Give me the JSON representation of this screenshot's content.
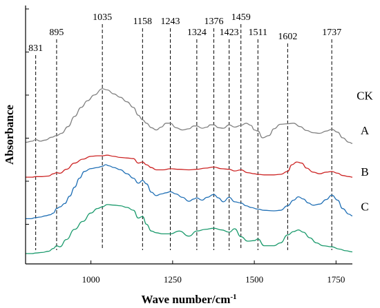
{
  "chart_data": {
    "type": "line",
    "xlabel": "Wave number/cm",
    "xlabel_sup": "-1",
    "ylabel": "Absorbance",
    "xlim": [
      800,
      1800
    ],
    "xticks": [
      1000,
      1250,
      1500,
      1750
    ],
    "yticks_count": 6,
    "y_axis_values_shown": false,
    "peak_markers": [
      831,
      895,
      1035,
      1158,
      1243,
      1324,
      1376,
      1423,
      1459,
      1511,
      1602,
      1737
    ],
    "series": [
      {
        "name": "CK",
        "color": "#808080",
        "baseline": 0.83,
        "x": [
          800,
          820,
          831,
          845,
          860,
          880,
          895,
          910,
          930,
          950,
          970,
          990,
          1010,
          1035,
          1050,
          1070,
          1090,
          1110,
          1130,
          1145,
          1158,
          1170,
          1185,
          1200,
          1215,
          1230,
          1243,
          1260,
          1280,
          1300,
          1315,
          1324,
          1340,
          1355,
          1365,
          1376,
          1390,
          1405,
          1423,
          1440,
          1459,
          1475,
          1490,
          1500,
          1511,
          1525,
          1545,
          1560,
          1580,
          1602,
          1620,
          1640,
          1660,
          1680,
          1700,
          1720,
          1737,
          1755,
          1770,
          1790,
          1800
        ],
        "y": [
          0.0,
          0.02,
          0.05,
          0.02,
          0.04,
          0.09,
          0.12,
          0.16,
          0.28,
          0.46,
          0.62,
          0.74,
          0.84,
          0.95,
          0.93,
          0.86,
          0.8,
          0.72,
          0.62,
          0.48,
          0.4,
          0.34,
          0.26,
          0.22,
          0.27,
          0.34,
          0.34,
          0.26,
          0.22,
          0.24,
          0.29,
          0.29,
          0.25,
          0.27,
          0.31,
          0.31,
          0.26,
          0.25,
          0.31,
          0.27,
          0.3,
          0.34,
          0.3,
          0.22,
          0.2,
          0.08,
          0.12,
          0.24,
          0.32,
          0.33,
          0.34,
          0.28,
          0.21,
          0.17,
          0.16,
          0.2,
          0.23,
          0.18,
          0.08,
          0.0,
          -0.02
        ]
      },
      {
        "name": "A",
        "color": "#cc2222",
        "baseline": 0.57,
        "x": [
          800,
          820,
          831,
          850,
          870,
          885,
          895,
          905,
          925,
          950,
          975,
          1000,
          1020,
          1035,
          1050,
          1070,
          1090,
          1110,
          1130,
          1145,
          1158,
          1170,
          1185,
          1200,
          1220,
          1243,
          1270,
          1300,
          1324,
          1350,
          1376,
          1400,
          1423,
          1440,
          1459,
          1480,
          1500,
          1511,
          1530,
          1560,
          1580,
          1602,
          1615,
          1630,
          1645,
          1660,
          1680,
          1700,
          1720,
          1737,
          1755,
          1770,
          1790,
          1800
        ],
        "y": [
          0.0,
          0.0,
          0.01,
          0.01,
          0.02,
          0.06,
          0.08,
          0.07,
          0.14,
          0.25,
          0.32,
          0.37,
          0.38,
          0.38,
          0.39,
          0.37,
          0.35,
          0.34,
          0.33,
          0.25,
          0.27,
          0.22,
          0.17,
          0.13,
          0.13,
          0.15,
          0.14,
          0.13,
          0.14,
          0.16,
          0.18,
          0.15,
          0.14,
          0.11,
          0.13,
          0.08,
          0.06,
          0.05,
          0.04,
          0.04,
          0.05,
          0.1,
          0.22,
          0.27,
          0.25,
          0.16,
          0.09,
          0.06,
          0.09,
          0.1,
          0.07,
          0.03,
          0.01,
          0.0
        ]
      },
      {
        "name": "B",
        "color": "#1f6fb5",
        "baseline": 0.26,
        "x": [
          800,
          815,
          831,
          845,
          860,
          875,
          885,
          895,
          905,
          920,
          935,
          950,
          965,
          980,
          1000,
          1020,
          1035,
          1045,
          1055,
          1070,
          1090,
          1110,
          1130,
          1145,
          1158,
          1170,
          1185,
          1200,
          1215,
          1230,
          1243,
          1260,
          1280,
          1300,
          1315,
          1324,
          1340,
          1355,
          1376,
          1390,
          1405,
          1423,
          1440,
          1459,
          1475,
          1490,
          1511,
          1530,
          1560,
          1580,
          1602,
          1620,
          1635,
          1650,
          1665,
          1680,
          1700,
          1720,
          1737,
          1755,
          1770,
          1790,
          1800
        ],
        "y": [
          0.0,
          0.0,
          0.02,
          0.03,
          0.05,
          0.07,
          0.1,
          0.18,
          0.21,
          0.27,
          0.4,
          0.56,
          0.72,
          0.84,
          0.89,
          0.91,
          0.93,
          0.96,
          0.94,
          0.91,
          0.87,
          0.8,
          0.72,
          0.63,
          0.68,
          0.62,
          0.47,
          0.41,
          0.44,
          0.46,
          0.48,
          0.44,
          0.38,
          0.31,
          0.35,
          0.37,
          0.33,
          0.38,
          0.43,
          0.37,
          0.3,
          0.38,
          0.3,
          0.28,
          0.23,
          0.2,
          0.17,
          0.15,
          0.14,
          0.15,
          0.23,
          0.33,
          0.39,
          0.35,
          0.28,
          0.24,
          0.26,
          0.34,
          0.42,
          0.33,
          0.18,
          0.08,
          0.05
        ]
      },
      {
        "name": "C",
        "color": "#1a9a6c",
        "baseline": 0.0,
        "x": [
          800,
          820,
          831,
          850,
          870,
          885,
          895,
          905,
          925,
          950,
          975,
          1000,
          1020,
          1035,
          1050,
          1070,
          1090,
          1110,
          1130,
          1145,
          1158,
          1170,
          1185,
          1200,
          1220,
          1243,
          1270,
          1300,
          1324,
          1350,
          1376,
          1400,
          1423,
          1440,
          1459,
          1480,
          1500,
          1511,
          1530,
          1560,
          1580,
          1602,
          1620,
          1635,
          1650,
          1670,
          1690,
          1710,
          1737,
          1760,
          1780,
          1800
        ],
        "y": [
          0.0,
          0.0,
          0.01,
          0.02,
          0.04,
          0.09,
          0.14,
          0.12,
          0.25,
          0.43,
          0.57,
          0.72,
          0.8,
          0.83,
          0.87,
          0.86,
          0.85,
          0.82,
          0.77,
          0.63,
          0.66,
          0.52,
          0.4,
          0.37,
          0.35,
          0.35,
          0.4,
          0.31,
          0.4,
          0.43,
          0.45,
          0.42,
          0.38,
          0.44,
          0.3,
          0.22,
          0.23,
          0.26,
          0.14,
          0.14,
          0.19,
          0.33,
          0.39,
          0.42,
          0.38,
          0.28,
          0.19,
          0.14,
          0.12,
          0.08,
          0.05,
          0.03
        ]
      }
    ]
  }
}
